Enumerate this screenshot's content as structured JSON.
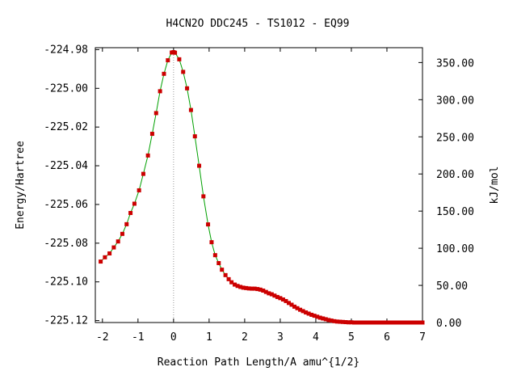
{
  "chart_data": {
    "type": "line",
    "title": "H4CN2O   DDC245 - TS1012 - EQ99",
    "xlabel": "Reaction Path Length/A amu^{1/2}",
    "ylabel": "Energy/Hartree",
    "y2label": "kJ/mol",
    "xlim": [
      -2.2,
      7
    ],
    "ylim": [
      -225.121,
      -224.979
    ],
    "y2lim": [
      0,
      370
    ],
    "x_ticks": [
      -2,
      -1,
      0,
      1,
      2,
      3,
      4,
      5,
      6,
      7
    ],
    "y_ticks": [
      -224.98,
      -225.0,
      -225.02,
      -225.04,
      -225.06,
      -225.08,
      -225.1,
      -225.12
    ],
    "y_tick_labels": [
      "-224.98",
      "-225.00",
      "-225.02",
      "-225.04",
      "-225.06",
      "-225.08",
      "-225.10",
      "-225.12"
    ],
    "y2_ticks": [
      0,
      50,
      100,
      150,
      200,
      250,
      300,
      350
    ],
    "y2_tick_labels": [
      "0.00",
      "50.00",
      "100.00",
      "150.00",
      "200.00",
      "250.00",
      "300.00",
      "350.00"
    ],
    "ts_marker_x": 0,
    "series": [
      {
        "line_color": "#00a000",
        "marker_color": "#cc0000",
        "x": [
          -2.05,
          -1.93,
          -1.8,
          -1.68,
          -1.56,
          -1.44,
          -1.32,
          -1.21,
          -1.1,
          -0.97,
          -0.85,
          -0.72,
          -0.6,
          -0.49,
          -0.38,
          -0.27,
          -0.16,
          -0.05,
          0.0,
          0.04,
          0.16,
          0.27,
          0.38,
          0.49,
          0.6,
          0.72,
          0.84,
          0.97,
          1.07,
          1.17,
          1.27,
          1.36,
          1.46,
          1.55,
          1.63,
          1.72,
          1.8,
          1.88,
          1.96,
          2.04,
          2.12,
          2.2,
          2.28,
          2.36,
          2.44,
          2.52,
          2.6,
          2.68,
          2.76,
          2.84,
          2.92,
          3.0,
          3.08,
          3.16,
          3.24,
          3.32,
          3.4,
          3.48,
          3.56,
          3.64,
          3.72,
          3.8,
          3.88,
          3.96,
          4.04,
          4.12,
          4.2,
          4.28,
          4.36,
          4.44,
          4.52,
          4.6,
          4.68,
          4.76,
          4.84,
          4.92,
          5.0,
          5.08,
          5.16,
          5.24,
          5.32,
          5.4,
          5.48,
          5.56,
          5.64,
          5.72,
          5.8,
          5.88,
          5.96,
          6.04,
          6.12,
          6.2,
          6.28,
          6.36,
          6.44,
          6.52,
          6.6,
          6.68,
          6.76,
          6.84,
          6.92,
          7.0
        ],
        "y": [
          -225.0895,
          -225.0873,
          -225.0853,
          -225.0822,
          -225.0791,
          -225.0752,
          -225.0702,
          -225.0644,
          -225.0596,
          -225.0527,
          -225.0442,
          -225.0347,
          -225.0235,
          -225.0128,
          -225.0015,
          -224.9925,
          -224.9855,
          -224.9815,
          -224.9813,
          -224.9816,
          -224.985,
          -224.9915,
          -225.0,
          -225.0112,
          -225.0248,
          -225.04,
          -225.0558,
          -225.0703,
          -225.0795,
          -225.0862,
          -225.0903,
          -225.0937,
          -225.0965,
          -225.0986,
          -225.1002,
          -225.1014,
          -225.1021,
          -225.1026,
          -225.103,
          -225.1032,
          -225.1034,
          -225.1035,
          -225.1035,
          -225.1037,
          -225.104,
          -225.1045,
          -225.1052,
          -225.1059,
          -225.1064,
          -225.1071,
          -225.1078,
          -225.1084,
          -225.1091,
          -225.1099,
          -225.1109,
          -225.1118,
          -225.1128,
          -225.1136,
          -225.1144,
          -225.1151,
          -225.1158,
          -225.1164,
          -225.117,
          -225.1175,
          -225.118,
          -225.1185,
          -225.1189,
          -225.1193,
          -225.1197,
          -225.12,
          -225.1203,
          -225.1205,
          -225.1206,
          -225.1207,
          -225.1208,
          -225.1209,
          -225.1209,
          -225.121,
          -225.121,
          -225.121,
          -225.121,
          -225.121,
          -225.121,
          -225.121,
          -225.121,
          -225.121,
          -225.121,
          -225.121,
          -225.121,
          -225.121,
          -225.121,
          -225.121,
          -225.121,
          -225.121,
          -225.121,
          -225.121,
          -225.121,
          -225.121,
          -225.121,
          -225.121,
          -225.121,
          -225.121
        ]
      }
    ]
  }
}
